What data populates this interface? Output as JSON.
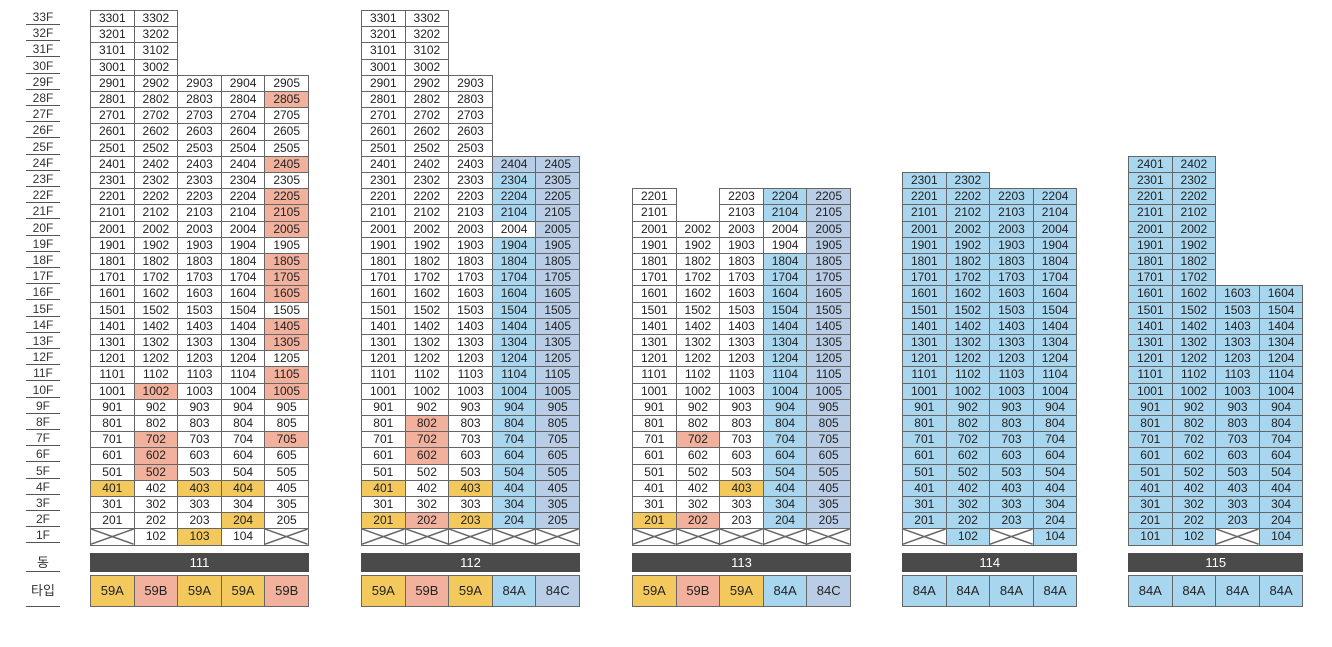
{
  "floors": [
    "33F",
    "32F",
    "31F",
    "30F",
    "29F",
    "28F",
    "27F",
    "26F",
    "25F",
    "24F",
    "23F",
    "22F",
    "21F",
    "20F",
    "19F",
    "18F",
    "17F",
    "16F",
    "15F",
    "14F",
    "13F",
    "12F",
    "11F",
    "10F",
    "9F",
    "8F",
    "7F",
    "6F",
    "5F",
    "4F",
    "3F",
    "2F",
    "1F"
  ],
  "legend": {
    "building_label": "동",
    "type_label": "타입"
  },
  "colors": {
    "59A": "#f3c85c",
    "59B": "#f2b19c",
    "84A": "#a9d6ef",
    "84C": "#b9cde6",
    "white": "#ffffff",
    "bar": "#4a4a4a"
  },
  "buildings": [
    {
      "name": "111",
      "types": [
        "59A",
        "59B",
        "59A",
        "59A",
        "59B"
      ],
      "columns": [
        {
          "max": 33,
          "x": [
            1
          ]
        },
        {
          "max": 33,
          "x": []
        },
        {
          "max": 29,
          "x": []
        },
        {
          "max": 29,
          "x": []
        },
        {
          "max": 29,
          "x": [
            1
          ]
        }
      ],
      "highlights": {
        "59A": [
          "401",
          "403",
          "404",
          "204",
          "103"
        ],
        "59B": [
          "2805",
          "2405",
          "2205",
          "2105",
          "2005",
          "1805",
          "1705",
          "1605",
          "1405",
          "1305",
          "1105",
          "1005",
          "1002",
          "702",
          "705",
          "602",
          "502"
        ]
      },
      "labels": {
        "101": ""
      }
    },
    {
      "name": "112",
      "types": [
        "59A",
        "59B",
        "59A",
        "84A",
        "84C"
      ],
      "columns": [
        {
          "max": 33,
          "x": [
            1
          ]
        },
        {
          "max": 33,
          "x": [
            1
          ]
        },
        {
          "max": 29,
          "x": [
            1
          ]
        },
        {
          "max": 24,
          "x": [
            1
          ]
        },
        {
          "max": 24,
          "x": [
            1
          ]
        }
      ],
      "highlights": {
        "59A": [
          "401",
          "403",
          "201",
          "203"
        ],
        "59B": [
          "802",
          "702",
          "602",
          "202"
        ],
        "84A": [
          "2304",
          "2204",
          "2104",
          "1904",
          "1804",
          "1704",
          "1604",
          "1504",
          "1404",
          "1304",
          "1204",
          "1104",
          "1004",
          "904",
          "804",
          "704",
          "604",
          "504",
          "404",
          "304",
          "204"
        ],
        "84C": [
          "2405",
          "2305",
          "2205",
          "2105",
          "2005",
          "1905",
          "1805",
          "1705",
          "1605",
          "1505",
          "1405",
          "1305",
          "1205",
          "1105",
          "1005",
          "905",
          "805",
          "705",
          "605",
          "505",
          "405",
          "305",
          "205",
          "2404"
        ]
      },
      "labels": {}
    },
    {
      "name": "113",
      "types": [
        "59A",
        "59B",
        "59A",
        "84A",
        "84C"
      ],
      "columns": [
        {
          "max": 22,
          "x": [
            1
          ]
        },
        {
          "max": 20,
          "x": [
            1
          ]
        },
        {
          "max": 22,
          "x": [
            1
          ]
        },
        {
          "max": 22,
          "x": [
            1
          ]
        },
        {
          "max": 22,
          "x": [
            1
          ]
        }
      ],
      "highlights": {
        "59A": [
          "403",
          "201"
        ],
        "59B": [
          "702",
          "202"
        ],
        "84A": [
          "2204",
          "2104",
          "1804",
          "1704",
          "1604",
          "1504",
          "1404",
          "1304",
          "1204",
          "1104",
          "1004",
          "904",
          "804",
          "704",
          "604",
          "504",
          "404",
          "304",
          "204"
        ],
        "84C": [
          "2205",
          "2105",
          "2005",
          "1905",
          "1805",
          "1705",
          "1605",
          "1505",
          "1405",
          "1305",
          "1205",
          "1105",
          "1005",
          "905",
          "805",
          "705",
          "605",
          "505",
          "405",
          "305",
          "205"
        ]
      },
      "gaps": [
        "2202",
        "2102"
      ],
      "labels": {}
    },
    {
      "name": "114",
      "types": [
        "84A",
        "84A",
        "84A",
        "84A"
      ],
      "columns": [
        {
          "max": 23,
          "x": [
            1
          ]
        },
        {
          "max": 23,
          "x": []
        },
        {
          "max": 22,
          "x": [
            1
          ]
        },
        {
          "max": 22,
          "x": []
        }
      ],
      "highlights": {
        "84A": [
          "all"
        ]
      },
      "labels": {}
    },
    {
      "name": "115",
      "types": [
        "84A",
        "84A",
        "84A",
        "84A"
      ],
      "columns": [
        {
          "max": 24,
          "x": []
        },
        {
          "max": 24,
          "x": []
        },
        {
          "max": 16,
          "x": [
            1
          ]
        },
        {
          "max": 16,
          "x": []
        }
      ],
      "highlights": {
        "84A": [
          "all"
        ]
      },
      "labels": {}
    }
  ]
}
